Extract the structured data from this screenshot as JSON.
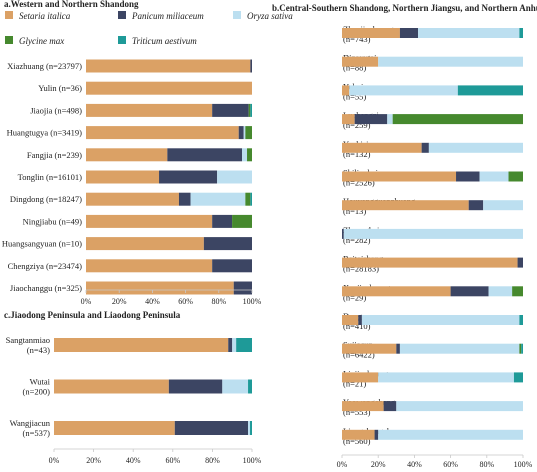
{
  "legend": {
    "items": [
      {
        "label": "Setaria italica",
        "color": "#dba165"
      },
      {
        "label": "Panicum miliaceum",
        "color": "#3c4563"
      },
      {
        "label": "Oryza sativa",
        "color": "#bcdff0"
      },
      {
        "label": "Glycine max",
        "color": "#46892e"
      },
      {
        "label": "Triticum aestivum",
        "color": "#1e9a98"
      }
    ]
  },
  "chart_data": [
    {
      "type": "bar",
      "orientation": "horizontal",
      "stacked": true,
      "title": "a.Western and Northern Shandong",
      "xlim": [
        0,
        100
      ],
      "xticks": [
        "0%",
        "20%",
        "40%",
        "60%",
        "80%",
        "100%"
      ],
      "categories": [
        "Xiazhuang (n=23797)",
        "Yulin (n=36)",
        "Jiaojia (n=498)",
        "Huangtugya (n=3419)",
        "Fangjia (n=239)",
        "Tonglin (n=16101)",
        "Dingdong (n=18247)",
        "Ningjiabu (n=49)",
        "Huangsangyuan (n=10)",
        "Chengziya (n=23474)",
        "Jiaochanggu (n=325)"
      ],
      "series": [
        {
          "name": "Setaria italica",
          "values": [
            99,
            100,
            76,
            92,
            49,
            44,
            56,
            76,
            71,
            76,
            89
          ]
        },
        {
          "name": "Panicum miliaceum",
          "values": [
            1,
            0,
            22,
            3,
            45,
            35,
            7,
            12,
            29,
            24,
            11
          ]
        },
        {
          "name": "Oryza sativa",
          "values": [
            0,
            0,
            0,
            1,
            3,
            21,
            33,
            0,
            0,
            0,
            0
          ]
        },
        {
          "name": "Glycine max",
          "values": [
            0,
            0,
            1,
            4,
            3,
            0,
            3,
            12,
            0,
            0,
            0
          ]
        },
        {
          "name": "Triticum aestivum",
          "values": [
            0,
            0,
            1,
            0,
            0,
            0,
            1,
            0,
            0,
            0,
            0
          ]
        }
      ]
    },
    {
      "type": "bar",
      "orientation": "horizontal",
      "stacked": true,
      "title": "c.Jiaodong Peninsula and Liaodong Peninsula",
      "xlim": [
        0,
        100
      ],
      "xticks": [
        "0%",
        "20%",
        "40%",
        "60%",
        "80%",
        "100%"
      ],
      "categories": [
        "Sangtanmiao (n=43)",
        "Wutai (n=200)",
        "Wangjiacun (n=537)"
      ],
      "series": [
        {
          "name": "Setaria italica",
          "values": [
            88,
            58,
            61
          ]
        },
        {
          "name": "Panicum miliaceum",
          "values": [
            2,
            27,
            37
          ]
        },
        {
          "name": "Oryza sativa",
          "values": [
            2,
            13,
            1
          ]
        },
        {
          "name": "Glycine max",
          "values": [
            0,
            0,
            0
          ]
        },
        {
          "name": "Triticum aestivum",
          "values": [
            8,
            2,
            1
          ]
        }
      ]
    },
    {
      "type": "bar",
      "orientation": "horizontal",
      "stacked": true,
      "title": "b.Central-Southern Shandong, Northern Jiangsu, and Northern Anhui",
      "xlim": [
        0,
        100
      ],
      "xticks": [
        "0%",
        "20%",
        "40%",
        "60%",
        "80%",
        "100%"
      ],
      "categories": [
        "Zhaojiazhuang (n=743)",
        "Dizoyutai (n=88)",
        "Yuhui (n=55)",
        "Luchengzi (n=259)",
        "Yuchisi (n=132)",
        "Shilipubei (n=2526)",
        "Houyangguanzhuang (n=13)",
        "Zhuangbai (n=282)",
        "Beitaishang (n=28183)",
        "Xuejiazhuang (n=29)",
        "Dongpan (n=410)",
        "Sujiacun (n=6422)",
        "Liujiazhuang (n=21)",
        "Yaowangcheng (n=553)",
        "Liangchengzhen (n=560)"
      ],
      "series": [
        {
          "name": "Setaria italica",
          "values": [
            32,
            20,
            4,
            7,
            44,
            63,
            70,
            0,
            97,
            60,
            9,
            30,
            20,
            23,
            18
          ]
        },
        {
          "name": "Panicum miliaceum",
          "values": [
            10,
            0,
            0,
            18,
            4,
            13,
            8,
            1,
            3,
            21,
            2,
            2,
            0,
            7,
            2
          ]
        },
        {
          "name": "Oryza sativa",
          "values": [
            56,
            80,
            60,
            3,
            52,
            16,
            22,
            99,
            0,
            13,
            87,
            66,
            75,
            70,
            80
          ]
        },
        {
          "name": "Glycine max",
          "values": [
            0,
            0,
            0,
            72,
            0,
            8,
            0,
            0,
            0,
            6,
            0,
            1,
            0,
            0,
            0
          ]
        },
        {
          "name": "Triticum aestivum",
          "values": [
            2,
            0,
            36,
            0,
            0,
            0,
            0,
            0,
            0,
            0,
            2,
            1,
            5,
            0,
            0
          ]
        }
      ]
    }
  ]
}
